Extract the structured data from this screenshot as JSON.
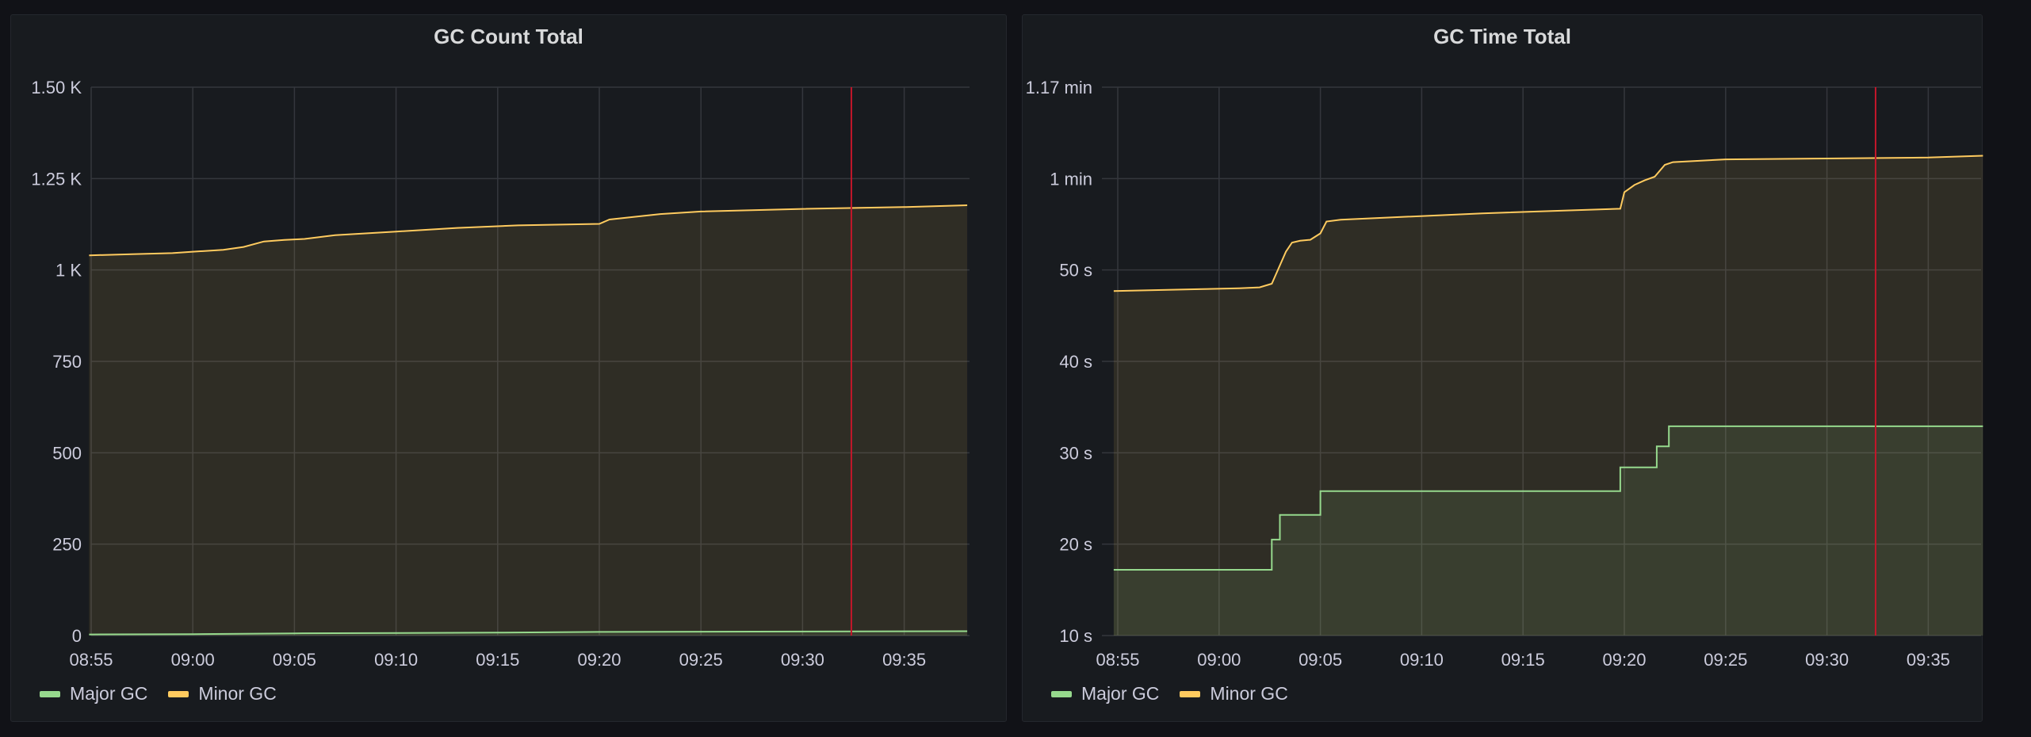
{
  "panels": [
    {
      "title": "GC Count Total",
      "legend": [
        {
          "name": "Major GC",
          "color": "#96d98d"
        },
        {
          "name": "Minor GC",
          "color": "#ffcb5f"
        }
      ]
    },
    {
      "title": "GC Time Total",
      "legend": [
        {
          "name": "Major GC",
          "color": "#96d98d"
        },
        {
          "name": "Minor GC",
          "color": "#ffcb5f"
        }
      ]
    }
  ],
  "chart_data": [
    {
      "type": "line",
      "title": "GC Count Total",
      "x_ticks": [
        "08:55",
        "09:00",
        "09:05",
        "09:10",
        "09:15",
        "09:20",
        "09:25",
        "09:30",
        "09:35"
      ],
      "y_ticks": [
        {
          "value": 1500,
          "label": "1.50 K"
        },
        {
          "value": 1250,
          "label": "1.25 K"
        },
        {
          "value": 1000,
          "label": "1 K"
        },
        {
          "value": 750,
          "label": "750"
        },
        {
          "value": 500,
          "label": "500"
        },
        {
          "value": 250,
          "label": "250"
        },
        {
          "value": 0,
          "label": "0"
        }
      ],
      "ylim": [
        0,
        1500
      ],
      "x_minutes_range": [
        -0.1,
        43.1
      ],
      "annotation_minute": 37.4,
      "grid": true,
      "legend_position": "bottom-left",
      "series": [
        {
          "name": "Major GC",
          "color": "#96d98d",
          "x": [
            -0.1,
            5,
            10,
            20,
            25,
            43.1
          ],
          "y": [
            3,
            4,
            6,
            8,
            10,
            12
          ]
        },
        {
          "name": "Minor GC",
          "color": "#ffcb5f",
          "x": [
            -0.1,
            2,
            4,
            5,
            6.5,
            7.5,
            8.5,
            9.5,
            10.5,
            12,
            15,
            18,
            21,
            25,
            25.5,
            28,
            30,
            35,
            40,
            43.1
          ],
          "y": [
            1040,
            1043,
            1046,
            1050,
            1055,
            1063,
            1078,
            1082,
            1085,
            1095,
            1105,
            1115,
            1122,
            1126,
            1138,
            1153,
            1160,
            1167,
            1172,
            1177
          ]
        }
      ]
    },
    {
      "type": "line",
      "title": "GC Time Total",
      "x_ticks": [
        "08:55",
        "09:00",
        "09:05",
        "09:10",
        "09:15",
        "09:20",
        "09:25",
        "09:30",
        "09:35"
      ],
      "y_ticks": [
        {
          "value": 70,
          "label": "1.17 min"
        },
        {
          "value": 60,
          "label": "1 min"
        },
        {
          "value": 50,
          "label": "50 s"
        },
        {
          "value": 40,
          "label": "40 s"
        },
        {
          "value": 30,
          "label": "30 s"
        },
        {
          "value": 20,
          "label": "20 s"
        },
        {
          "value": 10,
          "label": "10 s"
        }
      ],
      "ylim": [
        10,
        70
      ],
      "x_minutes_range": [
        -0.2,
        42.7
      ],
      "annotation_minute": 37.4,
      "grid": true,
      "legend_position": "bottom-left",
      "series": [
        {
          "name": "Major GC",
          "color": "#96d98d",
          "x": [
            -0.2,
            2,
            4,
            6,
            7.6,
            7.6,
            8,
            8,
            8.3,
            8.3,
            10,
            10,
            15,
            20,
            24.8,
            24.8,
            26.6,
            26.6,
            26.9,
            26.9,
            27.2,
            27.2,
            42.7
          ],
          "y": [
            17.2,
            17.2,
            17.2,
            17.2,
            17.2,
            20.5,
            20.5,
            23.2,
            23.2,
            23.2,
            23.2,
            25.8,
            25.8,
            25.8,
            25.8,
            28.4,
            28.4,
            30.7,
            30.7,
            30.7,
            30.7,
            32.9,
            32.9
          ],
          "step": true
        },
        {
          "name": "Minor GC",
          "color": "#ffcb5f",
          "x": [
            -0.2,
            2,
            4,
            6,
            7,
            7.6,
            8,
            8.3,
            8.6,
            9,
            9.5,
            10,
            10.3,
            11,
            14,
            18,
            22,
            24.8,
            25,
            25.5,
            26,
            26.5,
            27,
            27.4,
            30,
            35,
            40,
            42.7
          ],
          "y": [
            47.7,
            47.8,
            47.9,
            48,
            48.1,
            48.5,
            50.5,
            52,
            53,
            53.2,
            53.3,
            54,
            55.3,
            55.5,
            55.8,
            56.2,
            56.5,
            56.7,
            58.5,
            59.3,
            59.8,
            60.2,
            61.5,
            61.8,
            62.1,
            62.2,
            62.3,
            62.5
          ]
        }
      ]
    }
  ]
}
